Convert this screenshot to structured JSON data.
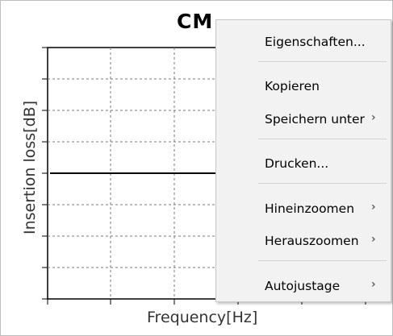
{
  "chart": {
    "title": "CM",
    "xlabel": "Frequency[Hz]",
    "ylabel": "Insertion loss[dB]"
  },
  "chart_data": {
    "type": "line",
    "title": "CM",
    "xlabel": "Frequency[Hz]",
    "ylabel": "Insertion loss[dB]",
    "grid": true,
    "series": [
      {
        "values": [
          0,
          0
        ]
      }
    ]
  },
  "context_menu": {
    "items": [
      {
        "label": "Eigenschaften...",
        "submenu": false
      },
      {
        "label": "Kopieren",
        "submenu": false
      },
      {
        "label": "Speichern unter",
        "submenu": true
      },
      {
        "label": "Drucken...",
        "submenu": false
      },
      {
        "label": "Hineinzoomen",
        "submenu": true
      },
      {
        "label": "Herauszoomen",
        "submenu": true
      },
      {
        "label": "Autojustage",
        "submenu": true
      }
    ],
    "submenu_arrow": "›"
  }
}
